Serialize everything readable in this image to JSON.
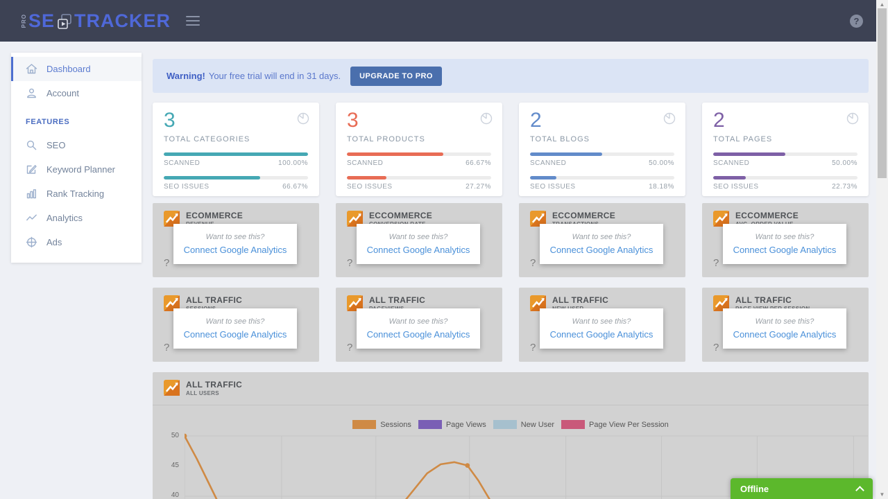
{
  "navbar": {
    "logo_pro": "pro",
    "logo_se": "SE",
    "logo_tracker": "TRACKER",
    "help_glyph": "?"
  },
  "sidebar": {
    "main_items": [
      {
        "id": "dashboard",
        "label": "Dashboard",
        "icon": "home-icon",
        "active": true
      },
      {
        "id": "account",
        "label": "Account",
        "icon": "user-icon",
        "active": false
      }
    ],
    "section_label": "FEATURES",
    "feature_items": [
      {
        "id": "seo",
        "label": "SEO",
        "icon": "search-icon"
      },
      {
        "id": "keyword-planner",
        "label": "Keyword Planner",
        "icon": "edit-icon"
      },
      {
        "id": "rank-tracking",
        "label": "Rank Tracking",
        "icon": "bar-chart-icon"
      },
      {
        "id": "analytics",
        "label": "Analytics",
        "icon": "line-chart-icon"
      },
      {
        "id": "ads",
        "label": "Ads",
        "icon": "target-icon"
      }
    ]
  },
  "banner": {
    "warning_bold": "Warning!",
    "message": "Your free trial will end in 31 days.",
    "button_label": "UPGRADE TO PRO"
  },
  "stats": [
    {
      "value": "3",
      "label": "TOTAL CATEGORIES",
      "color": "#45a8b4",
      "scanned_label": "SCANNED",
      "scanned_percent": "100.00%",
      "scanned_pct": 100,
      "issues_label": "SEO ISSUES",
      "issues_percent": "66.67%",
      "issues_pct": 66.67
    },
    {
      "value": "3",
      "label": "TOTAL PRODUCTS",
      "color": "#e86c55",
      "scanned_label": "SCANNED",
      "scanned_percent": "66.67%",
      "scanned_pct": 66.67,
      "issues_label": "SEO ISSUES",
      "issues_percent": "27.27%",
      "issues_pct": 27.27
    },
    {
      "value": "2",
      "label": "TOTAL BLOGS",
      "color": "#628bca",
      "scanned_label": "SCANNED",
      "scanned_percent": "50.00%",
      "scanned_pct": 50,
      "issues_label": "SEO ISSUES",
      "issues_percent": "18.18%",
      "issues_pct": 18.18
    },
    {
      "value": "2",
      "label": "TOTAL PAGES",
      "color": "#7e60a6",
      "scanned_label": "SCANNED",
      "scanned_percent": "50.00%",
      "scanned_pct": 50,
      "issues_label": "SEO ISSUES",
      "issues_percent": "22.73%",
      "issues_pct": 22.73
    }
  ],
  "ga_overlay": {
    "prompt": "Want to see this?",
    "link": "Connect Google Analytics",
    "mark": "?"
  },
  "ecommerce_cards": [
    {
      "title": "ECOMMERCE",
      "subtitle": "REVENUE"
    },
    {
      "title": "ECCOMMERCE",
      "subtitle": "CONVERSION RATE"
    },
    {
      "title": "ECCOMMERCE",
      "subtitle": "TRANSACTIONS"
    },
    {
      "title": "ECCOMMERCE",
      "subtitle": "AVG. ORDER VALUE"
    }
  ],
  "traffic_cards": [
    {
      "title": "ALL TRAFFIC",
      "subtitle": "SESSIONS"
    },
    {
      "title": "ALL TRAFFIC",
      "subtitle": "PAGEVIEWS"
    },
    {
      "title": "ALL TRAFFIC",
      "subtitle": "NEW USER"
    },
    {
      "title": "ALL TRAFFIC",
      "subtitle": "PAGE VIEW PER SESSION"
    }
  ],
  "chart": {
    "title": "ALL TRAFFIC",
    "subtitle": "ALL USERS"
  },
  "chart_data": {
    "type": "line",
    "title": "ALL TRAFFIC",
    "subtitle": "ALL USERS",
    "y_ticks": [
      "50",
      "45",
      "40"
    ],
    "ylim_visible": [
      40,
      50
    ],
    "grid": true,
    "legend_position": "top-center",
    "legend": [
      {
        "name": "Sessions",
        "color": "#cf8a45"
      },
      {
        "name": "Page Views",
        "color": "#7a5fb5"
      },
      {
        "name": "New User",
        "color": "#a6c0ce"
      },
      {
        "name": "Page View Per Session",
        "color": "#c9597a"
      }
    ],
    "y_gridlines": [
      50,
      40
    ],
    "x_gridlines_pct": [
      14.2,
      28,
      41.7,
      55.8,
      69.8,
      83.8,
      97.9
    ],
    "series": [
      {
        "name": "Sessions",
        "color": "#cf8a45",
        "x_unit": "percent-of-plot-width",
        "visible_segments": [
          [
            [
              0,
              50
            ],
            [
              1.8,
              46.2
            ],
            [
              3.4,
              42.5
            ],
            [
              5,
              38.8
            ]
          ],
          [
            [
              31,
              37.5
            ],
            [
              33.5,
              41
            ],
            [
              35.5,
              43.8
            ],
            [
              37.5,
              45.3
            ],
            [
              39.5,
              45.65
            ],
            [
              41.4,
              45.1
            ],
            [
              43,
              42.6
            ],
            [
              45,
              38.8
            ]
          ]
        ],
        "dots": [
          [
            0,
            50
          ],
          [
            41.4,
            45.1
          ]
        ]
      }
    ]
  },
  "offline": {
    "label": "Offline"
  }
}
